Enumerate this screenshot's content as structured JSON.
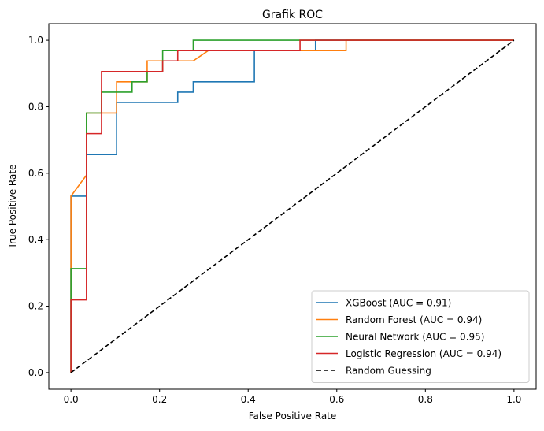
{
  "chart_data": {
    "type": "line",
    "title": "Grafik ROC",
    "xlabel": "False Positive Rate",
    "ylabel": "True Positive Rate",
    "xlim": [
      -0.05,
      1.05
    ],
    "ylim": [
      -0.05,
      1.05
    ],
    "xticks": [
      "0.0",
      "0.2",
      "0.4",
      "0.6",
      "0.8",
      "1.0"
    ],
    "yticks": [
      "0.0",
      "0.2",
      "0.4",
      "0.6",
      "0.8",
      "1.0"
    ],
    "grid": false,
    "legend_position": "lower-right",
    "series": [
      {
        "name": "XGBoost (AUC = 0.91)",
        "color": "#1f77b4",
        "dash": "solid",
        "x": [
          0,
          0,
          0.035,
          0.035,
          0.103,
          0.103,
          0.241,
          0.241,
          0.276,
          0.276,
          0.414,
          0.414,
          0.552,
          0.552,
          1.0
        ],
        "y": [
          0,
          0.531,
          0.531,
          0.656,
          0.656,
          0.813,
          0.813,
          0.844,
          0.844,
          0.875,
          0.875,
          0.969,
          0.969,
          1.0,
          1.0
        ]
      },
      {
        "name": "Random Forest (AUC = 0.94)",
        "color": "#ff7f0e",
        "dash": "solid",
        "x": [
          0,
          0,
          0.035,
          0.035,
          0.103,
          0.103,
          0.172,
          0.172,
          0.276,
          0.31,
          0.517,
          0.621,
          0.621,
          1.0
        ],
        "y": [
          0,
          0.531,
          0.594,
          0.781,
          0.781,
          0.875,
          0.875,
          0.938,
          0.938,
          0.969,
          0.969,
          0.969,
          1.0,
          1.0
        ]
      },
      {
        "name": "Neural Network (AUC = 0.95)",
        "color": "#2ca02c",
        "dash": "solid",
        "x": [
          0,
          0,
          0.035,
          0.035,
          0.069,
          0.069,
          0.138,
          0.138,
          0.172,
          0.172,
          0.207,
          0.207,
          0.276,
          0.276,
          1.0
        ],
        "y": [
          0,
          0.313,
          0.313,
          0.781,
          0.781,
          0.844,
          0.844,
          0.875,
          0.875,
          0.906,
          0.906,
          0.969,
          0.969,
          1.0,
          1.0
        ]
      },
      {
        "name": "Logistic Regression (AUC = 0.94)",
        "color": "#d62728",
        "dash": "solid",
        "x": [
          0,
          0,
          0.035,
          0.035,
          0.069,
          0.069,
          0.207,
          0.207,
          0.241,
          0.241,
          0.517,
          0.517,
          1.0
        ],
        "y": [
          0,
          0.219,
          0.219,
          0.719,
          0.719,
          0.906,
          0.906,
          0.938,
          0.938,
          0.969,
          0.969,
          1.0,
          1.0
        ]
      },
      {
        "name": "Random Guessing",
        "color": "#000000",
        "dash": "dashed",
        "x": [
          0,
          1
        ],
        "y": [
          0,
          1
        ]
      }
    ]
  }
}
